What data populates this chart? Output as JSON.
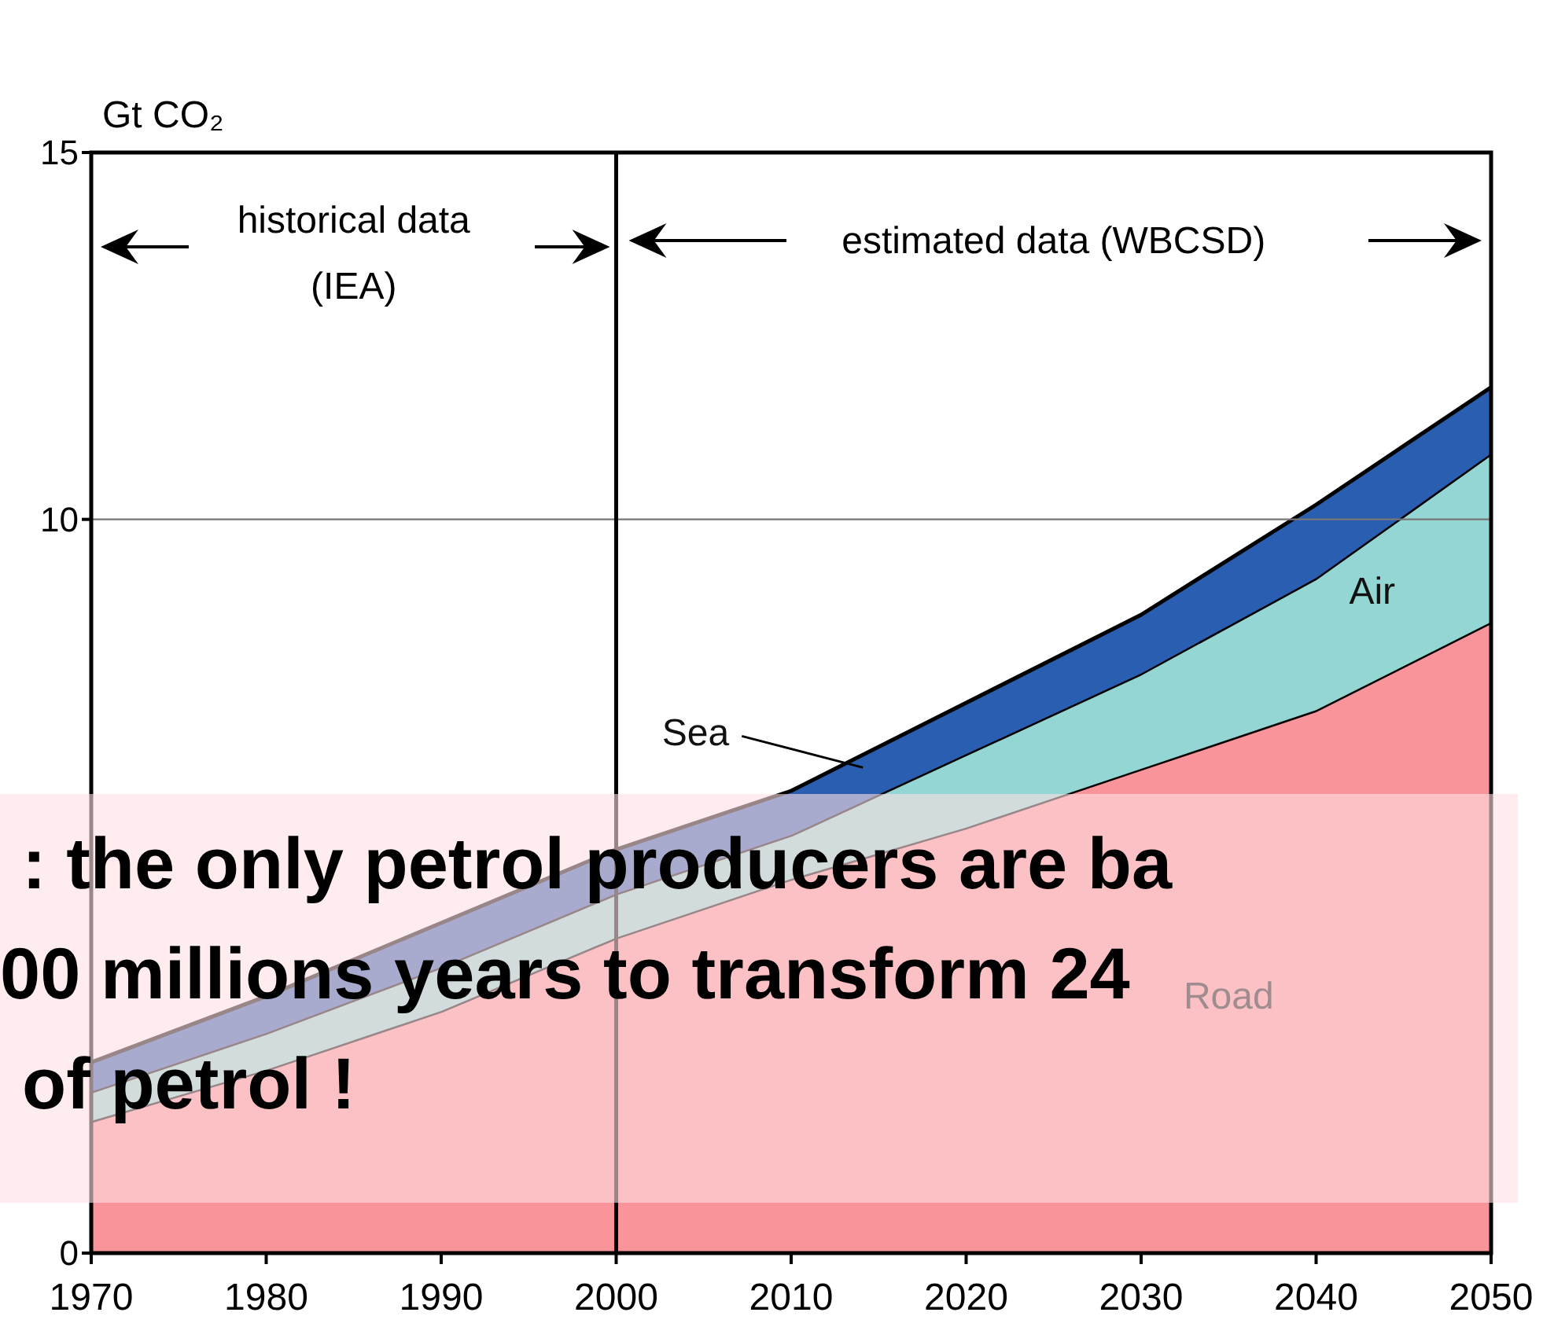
{
  "chart_data": {
    "type": "area",
    "stacked": true,
    "ylabel": "Gt CO₂",
    "x": [
      1970,
      1980,
      1990,
      2000,
      2010,
      2020,
      2030,
      2040,
      2050
    ],
    "series": [
      {
        "name": "Road",
        "color": "#f9959a",
        "values": [
          1.8,
          2.5,
          3.3,
          4.3,
          5.1,
          5.8,
          6.6,
          7.4,
          8.6
        ]
      },
      {
        "name": "Air",
        "color": "#93d6d3",
        "values": [
          0.4,
          0.5,
          0.6,
          0.6,
          0.6,
          1.0,
          1.3,
          1.8,
          2.3
        ]
      },
      {
        "name": "Sea",
        "color": "#2a5eb0",
        "values": [
          0.4,
          0.5,
          0.6,
          0.6,
          0.6,
          0.7,
          0.8,
          1.0,
          0.9
        ]
      }
    ],
    "xlim": [
      1970,
      2050
    ],
    "xticks": [
      1970,
      1980,
      1990,
      2000,
      2010,
      2020,
      2030,
      2040,
      2050
    ],
    "ylim": [
      0,
      15
    ],
    "yticks": [
      0,
      10,
      15
    ],
    "ref_lines": [
      {
        "axis": "x",
        "value": 2000,
        "color": "#000000"
      },
      {
        "axis": "y",
        "value": 10,
        "color": "#777777"
      }
    ],
    "annotations": [
      "historical data (IEA)",
      "estimated data (WBCSD)",
      ": the only petrol producers are ba",
      "00 millions years to transform 24",
      "of petrol !"
    ]
  }
}
